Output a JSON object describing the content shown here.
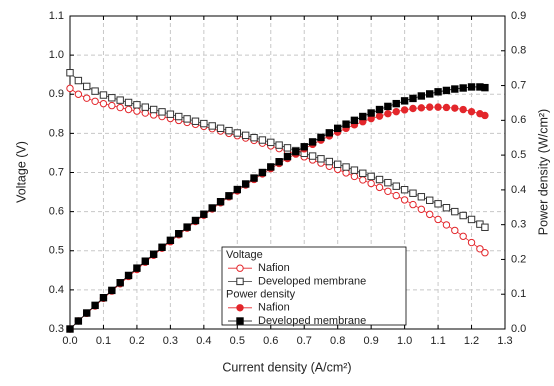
{
  "chart_data": {
    "type": "line",
    "x_label": "Current density (A/cm²)",
    "y_label": "Voltage (V)",
    "y2_label": "Power density (W/cm²)",
    "xlim": [
      0,
      1.3
    ],
    "xticks": [
      {
        "value": 0,
        "label": "0.0"
      },
      0.1,
      0.2,
      0.3,
      0.4,
      0.5,
      0.6,
      0.7,
      0.8,
      0.9,
      {
        "value": 1,
        "label": "1.0"
      },
      1.1,
      1.2,
      1.3
    ],
    "ylim": [
      0.3,
      1.1
    ],
    "yticks": [
      0.3,
      0.4,
      0.5,
      0.6,
      0.7,
      0.8,
      0.9,
      {
        "value": 1,
        "label": "1.0"
      },
      1.1
    ],
    "y2lim": [
      0,
      0.9
    ],
    "y2ticks": [
      {
        "value": 0,
        "label": "0.0"
      },
      0.1,
      0.2,
      0.3,
      0.4,
      0.5,
      0.6,
      0.7,
      0.8,
      0.9
    ],
    "grid": true,
    "legend_titles": [
      "Voltage",
      "Power density"
    ],
    "x": [
      0,
      0.025,
      0.05,
      0.075,
      0.1,
      0.125,
      0.15,
      0.175,
      0.2,
      0.225,
      0.25,
      0.275,
      0.3,
      0.325,
      0.35,
      0.375,
      0.4,
      0.425,
      0.45,
      0.475,
      0.5,
      0.525,
      0.55,
      0.575,
      0.6,
      0.625,
      0.65,
      0.675,
      0.7,
      0.725,
      0.75,
      0.775,
      0.8,
      0.825,
      0.85,
      0.875,
      0.9,
      0.925,
      0.95,
      0.975,
      1.0,
      1.025,
      1.05,
      1.075,
      1.1,
      1.125,
      1.15,
      1.175,
      1.2,
      1.225,
      1.24
    ],
    "series": [
      {
        "name": "Nafion",
        "color": "#e3262b",
        "marker": "circle",
        "filled": false,
        "values": [
          0.915,
          0.9,
          0.89,
          0.882,
          0.876,
          0.871,
          0.866,
          0.861,
          0.857,
          0.852,
          0.847,
          0.843,
          0.838,
          0.833,
          0.828,
          0.823,
          0.818,
          0.812,
          0.806,
          0.8,
          0.794,
          0.788,
          0.782,
          0.775,
          0.768,
          0.761,
          0.754,
          0.747,
          0.74,
          0.732,
          0.724,
          0.716,
          0.708,
          0.699,
          0.69,
          0.681,
          0.672,
          0.662,
          0.652,
          0.641,
          0.63,
          0.618,
          0.606,
          0.593,
          0.58,
          0.566,
          0.552,
          0.537,
          0.521,
          0.505,
          0.495
        ]
      },
      {
        "name": "Developed membrane",
        "color": "#333333",
        "marker": "square",
        "filled": false,
        "values": [
          0.955,
          0.935,
          0.92,
          0.908,
          0.898,
          0.891,
          0.885,
          0.879,
          0.873,
          0.867,
          0.861,
          0.855,
          0.849,
          0.843,
          0.837,
          0.831,
          0.825,
          0.819,
          0.813,
          0.807,
          0.801,
          0.795,
          0.789,
          0.783,
          0.777,
          0.77,
          0.763,
          0.756,
          0.749,
          0.742,
          0.735,
          0.728,
          0.721,
          0.714,
          0.706,
          0.698,
          0.69,
          0.682,
          0.674,
          0.665,
          0.656,
          0.647,
          0.638,
          0.629,
          0.62,
          0.61,
          0.6,
          0.59,
          0.58,
          0.568,
          0.56
        ]
      },
      {
        "name": "Nafion",
        "color": "#e3262b",
        "marker": "circle",
        "filled": true,
        "axis": "y2",
        "values": [
          0,
          0.023,
          0.045,
          0.066,
          0.088,
          0.109,
          0.13,
          0.151,
          0.171,
          0.192,
          0.212,
          0.232,
          0.251,
          0.271,
          0.29,
          0.309,
          0.327,
          0.345,
          0.363,
          0.38,
          0.397,
          0.414,
          0.43,
          0.446,
          0.461,
          0.476,
          0.49,
          0.504,
          0.518,
          0.531,
          0.543,
          0.555,
          0.566,
          0.577,
          0.587,
          0.596,
          0.605,
          0.612,
          0.619,
          0.625,
          0.63,
          0.634,
          0.636,
          0.638,
          0.638,
          0.637,
          0.635,
          0.631,
          0.625,
          0.619,
          0.614
        ]
      },
      {
        "name": "Developed membrane",
        "color": "#000000",
        "marker": "square",
        "filled": true,
        "axis": "y2",
        "values": [
          0,
          0.023,
          0.046,
          0.068,
          0.09,
          0.111,
          0.133,
          0.154,
          0.175,
          0.195,
          0.215,
          0.235,
          0.255,
          0.274,
          0.293,
          0.312,
          0.33,
          0.348,
          0.366,
          0.383,
          0.401,
          0.417,
          0.434,
          0.45,
          0.466,
          0.481,
          0.496,
          0.51,
          0.524,
          0.538,
          0.551,
          0.564,
          0.577,
          0.589,
          0.6,
          0.611,
          0.621,
          0.631,
          0.64,
          0.648,
          0.656,
          0.663,
          0.67,
          0.676,
          0.682,
          0.686,
          0.69,
          0.693,
          0.696,
          0.696,
          0.694
        ]
      }
    ]
  }
}
